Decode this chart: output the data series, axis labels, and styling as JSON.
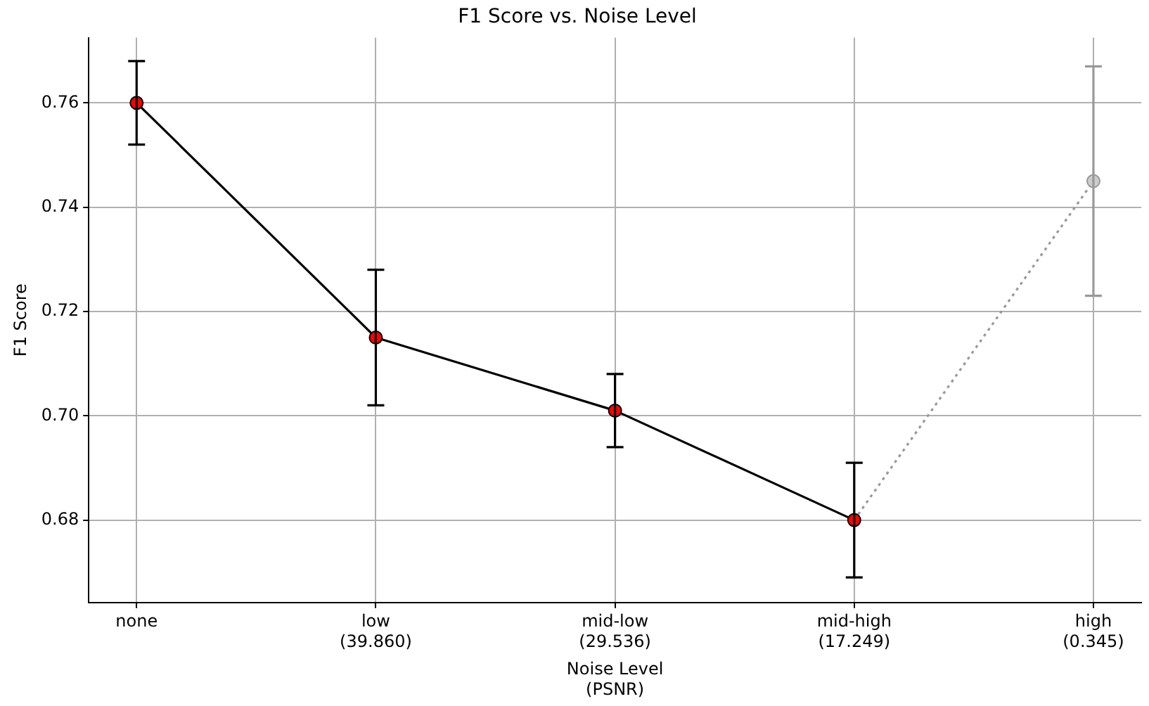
{
  "chart_data": {
    "type": "line",
    "title": "F1 Score vs. Noise Level",
    "xlabel": "Noise Level\n(PSNR)",
    "ylabel": "F1 Score",
    "categories": [
      "none",
      "low\n(39.860)",
      "mid-low\n(29.536)",
      "mid-high\n(17.249)",
      "high\n(0.345)"
    ],
    "series": [
      {
        "type": "line",
        "color": "#000000",
        "colors": [
          "#ff0000",
          "#ff0000",
          "#ff0000",
          "#ff0000",
          null
        ],
        "line_style": "solid",
        "values": [
          0.76,
          0.715,
          0.701,
          0.68,
          null
        ],
        "errors": [
          0.008,
          0.013,
          0.007,
          0.011,
          null
        ]
      },
      {
        "type": "line",
        "color": "#999999",
        "colors": [
          null,
          null,
          null,
          null,
          "#cccccc"
        ],
        "line_style": "dotted",
        "values": [
          null,
          null,
          null,
          0.68,
          0.745
        ],
        "errors": [
          null,
          null,
          null,
          null,
          0.022
        ]
      }
    ],
    "ylim": [
      0.6642,
      0.7725
    ],
    "yticks": [
      {
        "value": 0.68,
        "label": "0.68"
      },
      {
        "value": 0.7,
        "label": "0.70"
      },
      {
        "value": 0.72,
        "label": "0.72"
      },
      {
        "value": 0.74,
        "label": "0.74"
      },
      {
        "value": 0.76,
        "label": "0.76"
      }
    ],
    "grid": true,
    "marker": "circle",
    "legend": false
  }
}
